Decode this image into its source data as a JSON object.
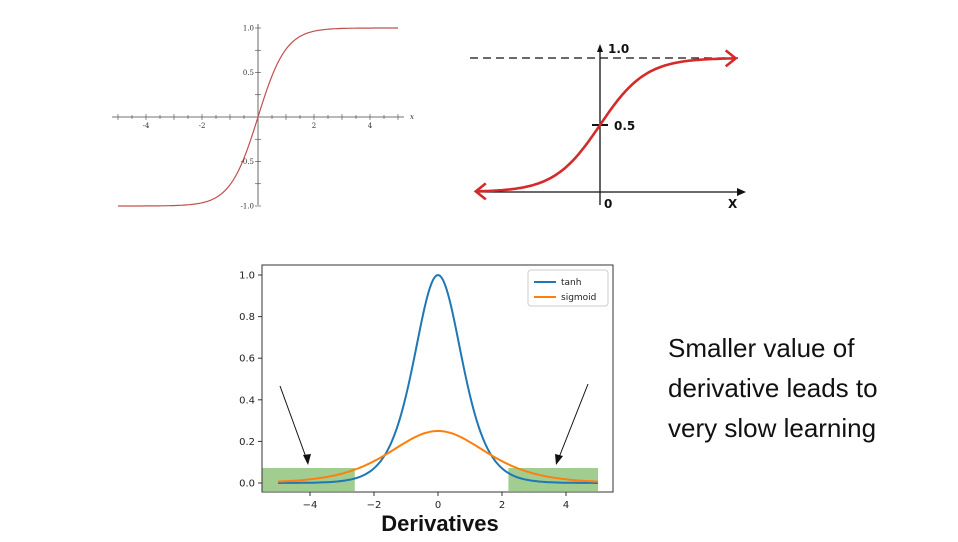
{
  "colors": {
    "tanh_plot": "#c0504d",
    "sigmoid_plot": "#d42a2a",
    "tanh_deriv": "#1f77b4",
    "sigmoid_deriv": "#ff7f0e",
    "highlight": "#92c47d"
  },
  "chart_data": [
    {
      "type": "line",
      "function": "tanh",
      "xlim": [
        -5,
        5
      ],
      "ylim": [
        -1,
        1
      ],
      "x_ticks": [
        "-4",
        "-2",
        "2",
        "4"
      ],
      "y_ticks": [
        "1.0",
        "0.5",
        "-0.5",
        "-1.0"
      ],
      "xlabel": "x",
      "x": [
        -5,
        -4,
        -3,
        -2,
        -1,
        0,
        1,
        2,
        3,
        4,
        5
      ],
      "y": [
        -1.0,
        -0.999,
        -0.995,
        -0.964,
        -0.762,
        0,
        0.762,
        0.964,
        0.995,
        0.999,
        1.0
      ]
    },
    {
      "type": "line",
      "function": "sigmoid",
      "labels": {
        "top": "1.0",
        "mid": "0.5",
        "origin": "0",
        "xaxis": "X"
      },
      "asymptote": 1.0,
      "x": [
        -6,
        -4,
        -2,
        0,
        2,
        4,
        6
      ],
      "y": [
        0.002,
        0.018,
        0.119,
        0.5,
        0.881,
        0.982,
        0.998
      ]
    },
    {
      "type": "line",
      "title": "Derivatives",
      "xlim": [
        -5.5,
        5.5
      ],
      "ylim": [
        -0.04,
        1.05
      ],
      "x_ticks": [
        "-4",
        "-2",
        "0",
        "2",
        "4"
      ],
      "y_ticks": [
        "0.0",
        "0.2",
        "0.4",
        "0.6",
        "0.8",
        "1.0"
      ],
      "legend_position": "top-right",
      "highlight_ranges": [
        [
          -5.5,
          -2.6
        ],
        [
          2.2,
          5.0
        ]
      ],
      "series": [
        {
          "name": "tanh",
          "x": [
            -5,
            -4,
            -3,
            -2,
            -1,
            0,
            1,
            2,
            3,
            4,
            5
          ],
          "values": [
            0.0002,
            0.0013,
            0.0099,
            0.0707,
            0.42,
            1.0,
            0.42,
            0.0707,
            0.0099,
            0.0013,
            0.0002
          ]
        },
        {
          "name": "sigmoid",
          "x": [
            -5,
            -4,
            -3,
            -2,
            -1,
            0,
            1,
            2,
            3,
            4,
            5
          ],
          "values": [
            0.0066,
            0.0177,
            0.0452,
            0.105,
            0.1966,
            0.25,
            0.1966,
            0.105,
            0.0452,
            0.0177,
            0.0066
          ]
        }
      ]
    }
  ],
  "caption": {
    "line1": "Smaller value of",
    "line2": "derivative leads to",
    "line3": "very slow learning"
  }
}
